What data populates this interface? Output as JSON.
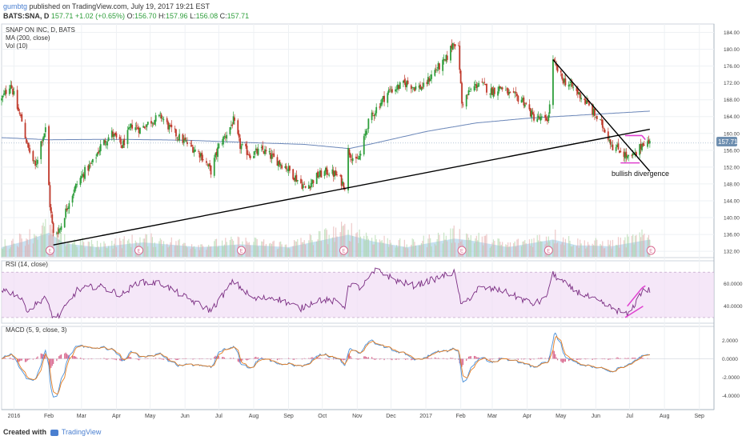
{
  "header": {
    "author": "gumbtg",
    "published": "published on TradingView.com, July 19, 2017 19:21 EST",
    "symbol": "BATS:SNA, D",
    "last": "157.71",
    "change": "+1.02 (+0.65%)",
    "o_label": "O:",
    "o": "156.70",
    "h_label": "H:",
    "h": "157.96",
    "l_label": "L:",
    "l": "156.08",
    "c_label": "C:",
    "c": "157.71"
  },
  "legend": {
    "name": "SNAP ON INC, D, BATS",
    "ma": "MA (200, close)",
    "vol": "Vol (10)"
  },
  "annotation": "bullish divergence",
  "price_badge": "157.71",
  "earnings_marker": "E",
  "rsi_label": "RSI (14, close)",
  "macd_label": "MACD (5, 9, close, 3)",
  "footer": {
    "created": "Created with",
    "brand": "TradingView"
  },
  "colors": {
    "up": "#2e9e3b",
    "down": "#c0392b",
    "ma": "#6a86b8",
    "volume": "#9ac8e6",
    "rsi": "#7a2d82",
    "rsi_band": "#f1ddf5",
    "macd": "#4a90d9",
    "signal": "#e67e22",
    "hist": "#d9698f",
    "trend": "#000000",
    "pattern": "#e040d0",
    "badge": "#6f8fb0"
  },
  "chart_data": [
    {
      "type": "candlestick",
      "title": "SNAP ON INC, D, BATS",
      "x_ticks": [
        "2016",
        "Feb",
        "Mar",
        "Apr",
        "May",
        "Jun",
        "Jul",
        "Aug",
        "Sep",
        "Oct",
        "Nov",
        "Dec",
        "2017",
        "Feb",
        "Mar",
        "Apr",
        "May",
        "Jun",
        "Jul",
        "Aug",
        "Sep"
      ],
      "y_ticks": [
        132,
        136,
        140,
        144,
        148,
        152,
        156,
        160,
        164,
        168,
        172,
        176,
        180,
        184
      ],
      "ylim": [
        130.5,
        186
      ],
      "close_anchors": [
        [
          "2015-12-21",
          168
        ],
        [
          "2015-12-29",
          172
        ],
        [
          "2016-01-04",
          166
        ],
        [
          "2016-01-08",
          163
        ],
        [
          "2016-01-13",
          157
        ],
        [
          "2016-01-20",
          152
        ],
        [
          "2016-01-25",
          158
        ],
        [
          "2016-01-29",
          161
        ],
        [
          "2016-02-02",
          143
        ],
        [
          "2016-02-05",
          136
        ],
        [
          "2016-02-11",
          137.5
        ],
        [
          "2016-02-19",
          144
        ],
        [
          "2016-02-26",
          148
        ],
        [
          "2016-03-04",
          151
        ],
        [
          "2016-03-11",
          153
        ],
        [
          "2016-03-18",
          157
        ],
        [
          "2016-03-28",
          160
        ],
        [
          "2016-04-06",
          157
        ],
        [
          "2016-04-15",
          162
        ],
        [
          "2016-04-22",
          161
        ],
        [
          "2016-05-02",
          163
        ],
        [
          "2016-05-11",
          164
        ],
        [
          "2016-05-19",
          161
        ],
        [
          "2016-05-27",
          159
        ],
        [
          "2016-06-06",
          157
        ],
        [
          "2016-06-15",
          155
        ],
        [
          "2016-06-24",
          151
        ],
        [
          "2016-07-01",
          157
        ],
        [
          "2016-07-08",
          160
        ],
        [
          "2016-07-14",
          163
        ],
        [
          "2016-07-20",
          157
        ],
        [
          "2016-07-29",
          155
        ],
        [
          "2016-08-09",
          156
        ],
        [
          "2016-08-19",
          154
        ],
        [
          "2016-08-30",
          152
        ],
        [
          "2016-09-09",
          149
        ],
        [
          "2016-09-16",
          147
        ],
        [
          "2016-09-27",
          150
        ],
        [
          "2016-10-06",
          151
        ],
        [
          "2016-10-14",
          150
        ],
        [
          "2016-10-21",
          147.5
        ],
        [
          "2016-10-24",
          156
        ],
        [
          "2016-10-31",
          153
        ],
        [
          "2016-11-04",
          155
        ],
        [
          "2016-11-10",
          162
        ],
        [
          "2016-11-18",
          166
        ],
        [
          "2016-11-29",
          170
        ],
        [
          "2016-12-07",
          171
        ],
        [
          "2016-12-15",
          172
        ],
        [
          "2016-12-22",
          171
        ],
        [
          "2016-12-30",
          171
        ],
        [
          "2017-01-09",
          175
        ],
        [
          "2017-01-18",
          177
        ],
        [
          "2017-01-26",
          182
        ],
        [
          "2017-01-30",
          180
        ],
        [
          "2017-02-02",
          167
        ],
        [
          "2017-02-09",
          170
        ],
        [
          "2017-02-17",
          172
        ],
        [
          "2017-02-28",
          170
        ],
        [
          "2017-03-09",
          171
        ],
        [
          "2017-03-17",
          169
        ],
        [
          "2017-03-28",
          168
        ],
        [
          "2017-04-06",
          164
        ],
        [
          "2017-04-17",
          163
        ],
        [
          "2017-04-20",
          164
        ],
        [
          "2017-04-24",
          177
        ],
        [
          "2017-05-02",
          173
        ],
        [
          "2017-05-11",
          171
        ],
        [
          "2017-05-22",
          168
        ],
        [
          "2017-06-01",
          164
        ],
        [
          "2017-06-09",
          161
        ],
        [
          "2017-06-16",
          157
        ],
        [
          "2017-06-23",
          156
        ],
        [
          "2017-06-30",
          154
        ],
        [
          "2017-07-07",
          155
        ],
        [
          "2017-07-13",
          158
        ],
        [
          "2017-07-19",
          157.71
        ]
      ],
      "moving_average": {
        "name": "MA (200, close)",
        "points": [
          [
            "2015-12-21",
            159
          ],
          [
            "2016-02-01",
            158.5
          ],
          [
            "2016-04-01",
            158.6
          ],
          [
            "2016-06-01",
            158.4
          ],
          [
            "2016-08-01",
            157.8
          ],
          [
            "2016-09-15",
            157.4
          ],
          [
            "2016-10-25",
            156.4
          ],
          [
            "2016-11-15",
            157.6
          ],
          [
            "2017-01-02",
            160.5
          ],
          [
            "2017-02-15",
            162.5
          ],
          [
            "2017-04-01",
            163.6
          ],
          [
            "2017-05-15",
            164.3
          ],
          [
            "2017-07-19",
            165.3
          ]
        ]
      },
      "volume": {
        "name": "Vol (10)",
        "points": [
          [
            "2015-12-21",
            1.0
          ],
          [
            "2016-01-10",
            1.6
          ],
          [
            "2016-02-01",
            2.5
          ],
          [
            "2016-02-15",
            1.4
          ],
          [
            "2016-03-15",
            1.0
          ],
          [
            "2016-04-25",
            1.5
          ],
          [
            "2016-06-15",
            1.0
          ],
          [
            "2016-07-20",
            1.3
          ],
          [
            "2016-09-01",
            1.0
          ],
          [
            "2016-10-24",
            2.3
          ],
          [
            "2016-11-15",
            1.6
          ],
          [
            "2016-12-15",
            1.0
          ],
          [
            "2017-01-26",
            1.9
          ],
          [
            "2017-02-10",
            1.7
          ],
          [
            "2017-03-15",
            1.0
          ],
          [
            "2017-04-24",
            1.8
          ],
          [
            "2017-05-15",
            1.2
          ],
          [
            "2017-06-15",
            1.1
          ],
          [
            "2017-07-19",
            1.8
          ]
        ]
      },
      "earnings": [
        "2016-02-02",
        "2016-04-21",
        "2016-07-21",
        "2016-10-20",
        "2017-02-02",
        "2017-04-20",
        "2017-07-20"
      ],
      "trendlines": [
        {
          "from": [
            "2016-02-05",
            133.5
          ],
          "to": [
            "2017-07-19",
            161
          ]
        },
        {
          "from": [
            "2017-04-24",
            177.5
          ],
          "to": [
            "2017-07-19",
            151
          ]
        }
      ],
      "pattern_lines": [
        {
          "from": [
            "2017-06-27",
            159.5
          ],
          "to": [
            "2017-07-12",
            159.5
          ]
        },
        {
          "from": [
            "2017-07-12",
            159.5
          ],
          "to": [
            "2017-07-15",
            158.5
          ]
        },
        {
          "from": [
            "2017-06-23",
            153
          ],
          "to": [
            "2017-07-10",
            153
          ]
        }
      ]
    },
    {
      "type": "line",
      "title": "RSI (14, close)",
      "y_ticks": [
        40,
        60
      ],
      "ylim": [
        25,
        80
      ],
      "band": [
        30,
        70
      ],
      "anchors": [
        [
          "2015-12-21",
          55
        ],
        [
          "2016-01-04",
          50
        ],
        [
          "2016-01-14",
          36
        ],
        [
          "2016-01-28",
          48
        ],
        [
          "2016-02-05",
          30
        ],
        [
          "2016-02-11",
          32
        ],
        [
          "2016-02-26",
          54
        ],
        [
          "2016-03-15",
          58
        ],
        [
          "2016-04-06",
          50
        ],
        [
          "2016-04-20",
          61
        ],
        [
          "2016-05-11",
          60
        ],
        [
          "2016-06-01",
          48
        ],
        [
          "2016-06-24",
          36
        ],
        [
          "2016-07-14",
          62
        ],
        [
          "2016-08-01",
          46
        ],
        [
          "2016-08-19",
          48
        ],
        [
          "2016-09-12",
          38
        ],
        [
          "2016-09-27",
          46
        ],
        [
          "2016-10-14",
          44
        ],
        [
          "2016-10-21",
          40
        ],
        [
          "2016-10-25",
          60
        ],
        [
          "2016-11-04",
          56
        ],
        [
          "2016-11-18",
          72
        ],
        [
          "2016-12-07",
          62
        ],
        [
          "2016-12-22",
          58
        ],
        [
          "2017-01-09",
          64
        ],
        [
          "2017-01-26",
          70
        ],
        [
          "2017-02-02",
          40
        ],
        [
          "2017-02-17",
          56
        ],
        [
          "2017-03-09",
          54
        ],
        [
          "2017-04-06",
          42
        ],
        [
          "2017-04-17",
          46
        ],
        [
          "2017-04-24",
          68
        ],
        [
          "2017-05-11",
          55
        ],
        [
          "2017-06-01",
          45
        ],
        [
          "2017-06-16",
          38
        ],
        [
          "2017-06-30",
          32
        ],
        [
          "2017-07-13",
          55
        ],
        [
          "2017-07-19",
          54
        ]
      ],
      "divergence_lines": [
        {
          "from": [
            "2017-06-27",
            30
          ],
          "to": [
            "2017-07-13",
            40
          ]
        },
        {
          "from": [
            "2017-06-29",
            40
          ],
          "to": [
            "2017-07-12",
            56
          ]
        },
        {
          "from": [
            "2017-07-12",
            56
          ],
          "to": [
            "2017-07-15",
            58
          ]
        }
      ]
    },
    {
      "type": "line",
      "title": "MACD (5, 9, close, 3)",
      "y_ticks": [
        -4.0,
        -2.0,
        0.0,
        2.0
      ],
      "ylim": [
        -5.5,
        3.5
      ]
    }
  ]
}
